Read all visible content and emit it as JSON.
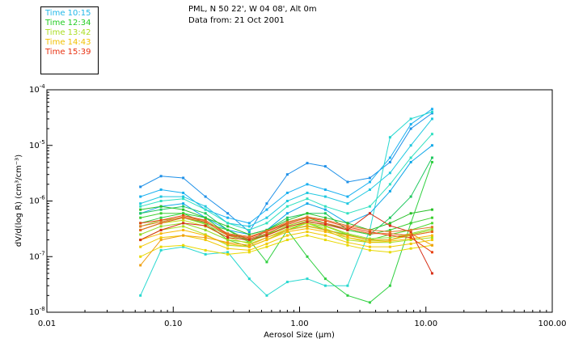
{
  "legend": [
    {
      "label": "Time 10:15",
      "color": "#22b8e8"
    },
    {
      "label": "Time 12:34",
      "color": "#22cc22"
    },
    {
      "label": "Time 13:42",
      "color": "#aadd22"
    },
    {
      "label": "Time 14:43",
      "color": "#f0c000"
    },
    {
      "label": "Time 15:39",
      "color": "#e83010"
    }
  ],
  "header": {
    "location": "PML, N 50 22', W 04 08', Alt 0m",
    "date": "Data from: 21 Oct 2001"
  },
  "chart_data": {
    "type": "line",
    "xscale": "log",
    "yscale": "log",
    "xlabel": "Aerosol Size (μm)",
    "ylabel": "dV/d(log R) (cm³/cm⁻³)",
    "xlim": [
      0.01,
      100
    ],
    "ylim": [
      1e-08,
      0.0001
    ],
    "x_ticks": [
      {
        "value": 0.01,
        "label": "0.01"
      },
      {
        "value": 0.1,
        "label": "0.10"
      },
      {
        "value": 1,
        "label": "1.00"
      },
      {
        "value": 10,
        "label": "10.00"
      },
      {
        "value": 100,
        "label": "100.00"
      }
    ],
    "y_ticks": [
      {
        "value": 1e-08,
        "label": "10",
        "exp": "-8"
      },
      {
        "value": 1e-07,
        "label": "10",
        "exp": "-7"
      },
      {
        "value": 1e-06,
        "label": "10",
        "exp": "-6"
      },
      {
        "value": 1e-05,
        "label": "10",
        "exp": "-5"
      },
      {
        "value": 0.0001,
        "label": "10",
        "exp": "-4"
      }
    ],
    "x": [
      0.055,
      0.08,
      0.12,
      0.18,
      0.27,
      0.4,
      0.55,
      0.8,
      1.15,
      1.6,
      2.4,
      3.6,
      5.2,
      7.6,
      11.2
    ],
    "series": [
      {
        "name": "10:15 a",
        "color": "#1e90e8",
        "values": [
          1.8e-06,
          2.8e-06,
          2.6e-06,
          1.2e-06,
          6e-07,
          2.8e-07,
          9e-07,
          3e-06,
          4.8e-06,
          4.2e-06,
          2.2e-06,
          2.6e-06,
          5e-06,
          2e-05,
          3.8e-05
        ]
      },
      {
        "name": "10:15 b",
        "color": "#1ab0f0",
        "values": [
          1.2e-06,
          1.6e-06,
          1.4e-06,
          7e-07,
          5e-07,
          4e-07,
          7e-07,
          1.4e-06,
          2e-06,
          1.6e-06,
          1.2e-06,
          2.2e-06,
          6e-06,
          2.4e-05,
          4.5e-05
        ]
      },
      {
        "name": "10:15 c",
        "color": "#20c8e0",
        "values": [
          9e-07,
          1.2e-06,
          1.2e-06,
          8e-07,
          4e-07,
          3.5e-07,
          5e-07,
          1e-06,
          1.4e-06,
          1.2e-06,
          9e-07,
          1.6e-06,
          3.2e-06,
          1e-05,
          3e-05
        ]
      },
      {
        "name": "10:15 d",
        "color": "#28d8d0",
        "values": [
          2e-08,
          1.3e-07,
          1.5e-07,
          1.1e-07,
          1.2e-07,
          4e-08,
          2e-08,
          3.5e-08,
          4e-08,
          3e-08,
          3e-08,
          3e-07,
          1.4e-05,
          3e-05,
          4e-05
        ]
      },
      {
        "name": "10:15 e",
        "color": "#30e0c0",
        "values": [
          8e-07,
          1e-06,
          1.1e-06,
          7e-07,
          4e-07,
          3e-07,
          4e-07,
          8e-07,
          1.1e-06,
          8e-07,
          6e-07,
          8e-07,
          2e-06,
          6e-06,
          1.6e-05
        ]
      },
      {
        "name": "10:15 f",
        "color": "#10a8e8",
        "values": [
          6e-07,
          8e-07,
          9e-07,
          5e-07,
          3e-07,
          2.5e-07,
          3e-07,
          6e-07,
          9e-07,
          7e-07,
          4e-07,
          6e-07,
          1.5e-06,
          5e-06,
          1e-05
        ]
      },
      {
        "name": "12:34 a",
        "color": "#20c860",
        "values": [
          6e-07,
          7e-07,
          8e-07,
          6e-07,
          3e-07,
          1.8e-07,
          3e-07,
          5e-07,
          6e-07,
          6e-07,
          3e-07,
          2.5e-07,
          5e-07,
          1.2e-06,
          6e-06
        ]
      },
      {
        "name": "12:34 b",
        "color": "#30d040",
        "values": [
          4e-07,
          5e-07,
          6e-07,
          5e-07,
          2.5e-07,
          2e-07,
          8e-08,
          3e-07,
          1e-07,
          4e-08,
          2e-08,
          1.5e-08,
          3e-08,
          4e-07,
          5e-06
        ]
      },
      {
        "name": "12:34 c",
        "color": "#3cd030",
        "values": [
          5e-07,
          6e-07,
          6e-07,
          4e-07,
          3e-07,
          2e-07,
          2.5e-07,
          4e-07,
          5e-07,
          4e-07,
          3e-07,
          2.5e-07,
          3e-07,
          4e-07,
          5e-07
        ]
      },
      {
        "name": "12:34 d",
        "color": "#50d830",
        "values": [
          3e-07,
          4e-07,
          5e-07,
          4e-07,
          2e-07,
          1.5e-07,
          2e-07,
          3e-07,
          4e-07,
          3e-07,
          2.5e-07,
          2e-07,
          2.5e-07,
          3e-07,
          4e-07
        ]
      },
      {
        "name": "12:34 e",
        "color": "#28c028",
        "values": [
          7e-07,
          8e-07,
          7e-07,
          5e-07,
          3.5e-07,
          2.5e-07,
          3e-07,
          4.5e-07,
          6e-07,
          5e-07,
          4e-07,
          3e-07,
          4e-07,
          6e-07,
          7e-07
        ]
      },
      {
        "name": "13:42 a",
        "color": "#90d820",
        "values": [
          2.5e-07,
          3.5e-07,
          4e-07,
          3e-07,
          2e-07,
          1.8e-07,
          2.5e-07,
          3.5e-07,
          4e-07,
          3.5e-07,
          2.5e-07,
          2e-07,
          2e-07,
          2.5e-07,
          3e-07
        ]
      },
      {
        "name": "13:42 b",
        "color": "#a8e020",
        "values": [
          2e-07,
          3e-07,
          3.5e-07,
          2.5e-07,
          1.6e-07,
          1.5e-07,
          2e-07,
          3e-07,
          3.5e-07,
          3e-07,
          2e-07,
          1.8e-07,
          1.8e-07,
          2e-07,
          2.2e-07
        ]
      },
      {
        "name": "13:42 c",
        "color": "#c0e018",
        "values": [
          3e-07,
          4e-07,
          4.5e-07,
          3.5e-07,
          2.2e-07,
          1.7e-07,
          2.2e-07,
          3.2e-07,
          4e-07,
          3.2e-07,
          2.2e-07,
          1.9e-07,
          2e-07,
          2.4e-07,
          2.8e-07
        ]
      },
      {
        "name": "13:42 d",
        "color": "#98dc30",
        "values": [
          3.5e-07,
          4.5e-07,
          5e-07,
          3.8e-07,
          2.4e-07,
          1.9e-07,
          2.4e-07,
          3.6e-07,
          4.4e-07,
          3.6e-07,
          2.6e-07,
          2.1e-07,
          2.2e-07,
          2.6e-07,
          3.2e-07
        ]
      },
      {
        "name": "14:43 a",
        "color": "#f0c800",
        "values": [
          1.5e-07,
          2.2e-07,
          2.4e-07,
          2e-07,
          1.4e-07,
          1.3e-07,
          1.7e-07,
          2.4e-07,
          2.8e-07,
          2.4e-07,
          1.8e-07,
          1.5e-07,
          1.5e-07,
          1.7e-07,
          2e-07
        ]
      },
      {
        "name": "14:43 b",
        "color": "#e8d800",
        "values": [
          1e-07,
          1.5e-07,
          1.6e-07,
          1.3e-07,
          1.1e-07,
          1.2e-07,
          1.5e-07,
          2e-07,
          2.4e-07,
          2e-07,
          1.6e-07,
          1.3e-07,
          1.2e-07,
          1.4e-07,
          1.6e-07
        ]
      },
      {
        "name": "14:43 c",
        "color": "#f8b800",
        "values": [
          2e-07,
          2.6e-07,
          3e-07,
          2.4e-07,
          1.7e-07,
          1.5e-07,
          2e-07,
          2.8e-07,
          3.2e-07,
          2.8e-07,
          2.2e-07,
          1.8e-07,
          1.9e-07,
          2.1e-07,
          2.4e-07
        ]
      },
      {
        "name": "14:43 d",
        "color": "#f0a010",
        "values": [
          7e-08,
          2e-07,
          2.4e-07,
          2.2e-07,
          1.8e-07,
          1.6e-07,
          2.2e-07,
          3e-07,
          3.6e-07,
          3e-07,
          2.4e-07,
          2e-07,
          2e-07,
          2.6e-07,
          1.6e-07
        ]
      },
      {
        "name": "15:39 a",
        "color": "#e84010",
        "values": [
          4e-07,
          4.5e-07,
          5.5e-07,
          4.5e-07,
          2.5e-07,
          2.2e-07,
          2.8e-07,
          4e-07,
          5e-07,
          4.4e-07,
          3.4e-07,
          2.8e-07,
          2.4e-07,
          2.2e-07,
          1.2e-07
        ]
      },
      {
        "name": "15:39 b",
        "color": "#e86020",
        "values": [
          3e-07,
          4e-07,
          5e-07,
          4.2e-07,
          2.4e-07,
          2.1e-07,
          2.6e-07,
          3.8e-07,
          4.6e-07,
          4e-07,
          3.2e-07,
          2.6e-07,
          2.6e-07,
          2.4e-07,
          2.8e-07
        ]
      },
      {
        "name": "15:39 c",
        "color": "#d83018",
        "values": [
          2e-07,
          3e-07,
          4e-07,
          3.6e-07,
          2.2e-07,
          2e-07,
          2.4e-07,
          3.4e-07,
          4.2e-07,
          3.8e-07,
          3e-07,
          6e-07,
          3.6e-07,
          2.8e-07,
          5e-08
        ]
      },
      {
        "name": "15:39 d",
        "color": "#e07828",
        "values": [
          3.5e-07,
          4.2e-07,
          5.2e-07,
          4.4e-07,
          2.6e-07,
          2.3e-07,
          2.9e-07,
          4.2e-07,
          5.2e-07,
          4.6e-07,
          3.6e-07,
          3e-07,
          2.8e-07,
          3e-07,
          3.4e-07
        ]
      }
    ]
  }
}
